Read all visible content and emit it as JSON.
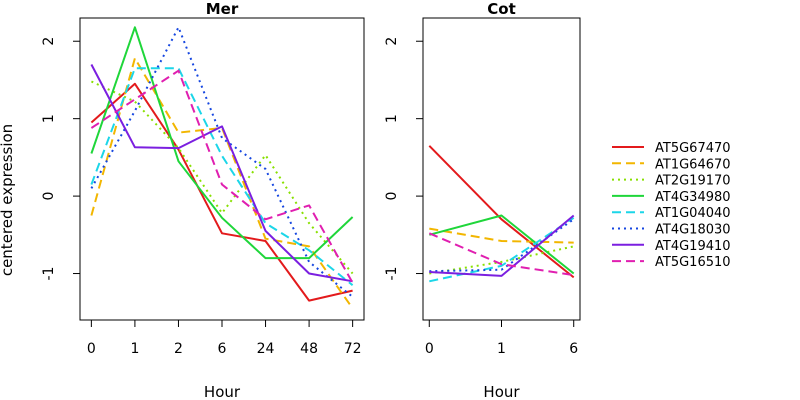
{
  "chart_data": [
    {
      "type": "line",
      "title": "Mer",
      "xlabel": "Hour",
      "ylabel": "centered expression",
      "categories": [
        "0",
        "1",
        "2",
        "6",
        "24",
        "48",
        "72"
      ],
      "yticks": [
        "-1",
        "0",
        "1",
        "2"
      ],
      "ylim": [
        -1.6,
        2.3
      ],
      "series": [
        {
          "name": "AT5G67470",
          "values": [
            0.95,
            1.45,
            0.6,
            -0.48,
            -0.58,
            -1.35,
            -1.22
          ]
        },
        {
          "name": "AT1G64670",
          "values": [
            -0.25,
            1.78,
            0.82,
            0.88,
            -0.55,
            -0.65,
            -1.45
          ]
        },
        {
          "name": "AT2G19170",
          "values": [
            1.48,
            1.22,
            0.62,
            -0.22,
            0.53,
            -0.35,
            -1.0
          ]
        },
        {
          "name": "AT4G34980",
          "values": [
            0.55,
            2.18,
            0.45,
            -0.28,
            -0.8,
            -0.8,
            -0.27
          ]
        },
        {
          "name": "AT1G04040",
          "values": [
            0.15,
            1.65,
            1.65,
            0.52,
            -0.35,
            -0.7,
            -1.15
          ]
        },
        {
          "name": "AT4G18030",
          "values": [
            0.1,
            1.1,
            2.18,
            0.75,
            0.35,
            -0.85,
            -1.3
          ]
        },
        {
          "name": "AT4G19410",
          "values": [
            1.7,
            0.63,
            0.62,
            0.9,
            -0.45,
            -1.0,
            -1.1
          ]
        },
        {
          "name": "AT5G16510",
          "values": [
            0.88,
            1.25,
            1.62,
            0.15,
            -0.3,
            -0.12,
            -1.12
          ]
        }
      ]
    },
    {
      "type": "line",
      "title": "Cot",
      "xlabel": "Hour",
      "categories": [
        "0",
        "1",
        "6"
      ],
      "yticks": [
        "-1",
        "0",
        "1",
        "2"
      ],
      "ylim": [
        -1.6,
        2.3
      ],
      "series": [
        {
          "name": "AT5G67470",
          "values": [
            0.65,
            -0.3,
            -1.05
          ]
        },
        {
          "name": "AT1G64670",
          "values": [
            -0.42,
            -0.58,
            -0.6
          ]
        },
        {
          "name": "AT2G19170",
          "values": [
            -1.0,
            -0.85,
            -0.65
          ]
        },
        {
          "name": "AT4G34980",
          "values": [
            -0.5,
            -0.25,
            -1.0
          ]
        },
        {
          "name": "AT1G04040",
          "values": [
            -1.1,
            -0.9,
            -0.28
          ]
        },
        {
          "name": "AT4G18030",
          "values": [
            -0.97,
            -0.95,
            -0.3
          ]
        },
        {
          "name": "AT4G19410",
          "values": [
            -0.98,
            -1.03,
            -0.25
          ]
        },
        {
          "name": "AT5G16510",
          "values": [
            -0.48,
            -0.88,
            -1.02
          ]
        }
      ]
    }
  ],
  "legend": {
    "placement": "right",
    "entries": [
      {
        "label": "AT5G67470",
        "color": "#e31a1c",
        "style": "solid"
      },
      {
        "label": "AT1G64670",
        "color": "#f2b600",
        "style": "dashed"
      },
      {
        "label": "AT2G19170",
        "color": "#88e000",
        "style": "dotted"
      },
      {
        "label": "AT4G34980",
        "color": "#1fd63a",
        "style": "solid"
      },
      {
        "label": "AT1G04040",
        "color": "#1cd6e8",
        "style": "dashed"
      },
      {
        "label": "AT4G18030",
        "color": "#1546e0",
        "style": "dotted"
      },
      {
        "label": "AT4G19410",
        "color": "#7b1fe0",
        "style": "solid"
      },
      {
        "label": "AT5G16510",
        "color": "#e01fb0",
        "style": "dashed"
      }
    ]
  }
}
